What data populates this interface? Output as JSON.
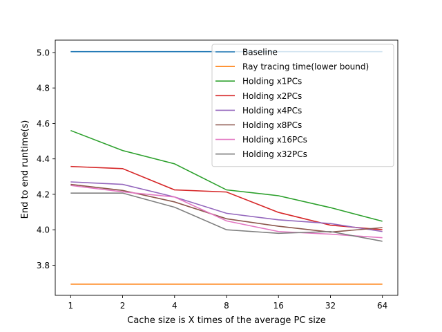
{
  "chart_data": {
    "type": "line",
    "title": "",
    "xlabel": "Cache size is X times of the average PC size",
    "ylabel": "End to end runtime(s)",
    "categories": [
      "1",
      "2",
      "4",
      "8",
      "16",
      "32",
      "64"
    ],
    "ylim": [
      3.63,
      5.07
    ],
    "yticks": [
      "3.8",
      "4.0",
      "4.2",
      "4.4",
      "4.6",
      "4.8",
      "5.0"
    ],
    "ytick_values": [
      3.8,
      4.0,
      4.2,
      4.4,
      4.6,
      4.8,
      5.0
    ],
    "grid": false,
    "legend_position": "top-right",
    "series": [
      {
        "name": "Baseline",
        "color": "#1f77b4",
        "values": [
          5.005,
          5.005,
          5.005,
          5.005,
          5.005,
          5.005,
          5.005
        ]
      },
      {
        "name": "Ray tracing time(lower bound)",
        "color": "#ff7f0e",
        "values": [
          3.693,
          3.693,
          3.693,
          3.693,
          3.693,
          3.693,
          3.693
        ]
      },
      {
        "name": "Holding x1PCs",
        "color": "#2ca02c",
        "values": [
          4.56,
          4.447,
          4.372,
          4.225,
          4.192,
          4.125,
          4.048
        ]
      },
      {
        "name": "Holding x2PCs",
        "color": "#d62728",
        "values": [
          4.357,
          4.345,
          4.225,
          4.213,
          4.098,
          4.026,
          4.0
        ]
      },
      {
        "name": "Holding x4PCs",
        "color": "#9467bd",
        "values": [
          4.27,
          4.256,
          4.185,
          4.093,
          4.056,
          4.035,
          3.99
        ]
      },
      {
        "name": "Holding x8PCs",
        "color": "#8c564b",
        "values": [
          4.256,
          4.222,
          4.157,
          4.062,
          4.02,
          3.987,
          4.012
        ]
      },
      {
        "name": "Holding x16PCs",
        "color": "#e377c2",
        "values": [
          4.25,
          4.214,
          4.185,
          4.05,
          3.99,
          3.975,
          3.955
        ]
      },
      {
        "name": "Holding x32PCs",
        "color": "#7f7f7f",
        "values": [
          4.207,
          4.207,
          4.127,
          4.0,
          3.98,
          3.99,
          3.935
        ]
      }
    ]
  }
}
